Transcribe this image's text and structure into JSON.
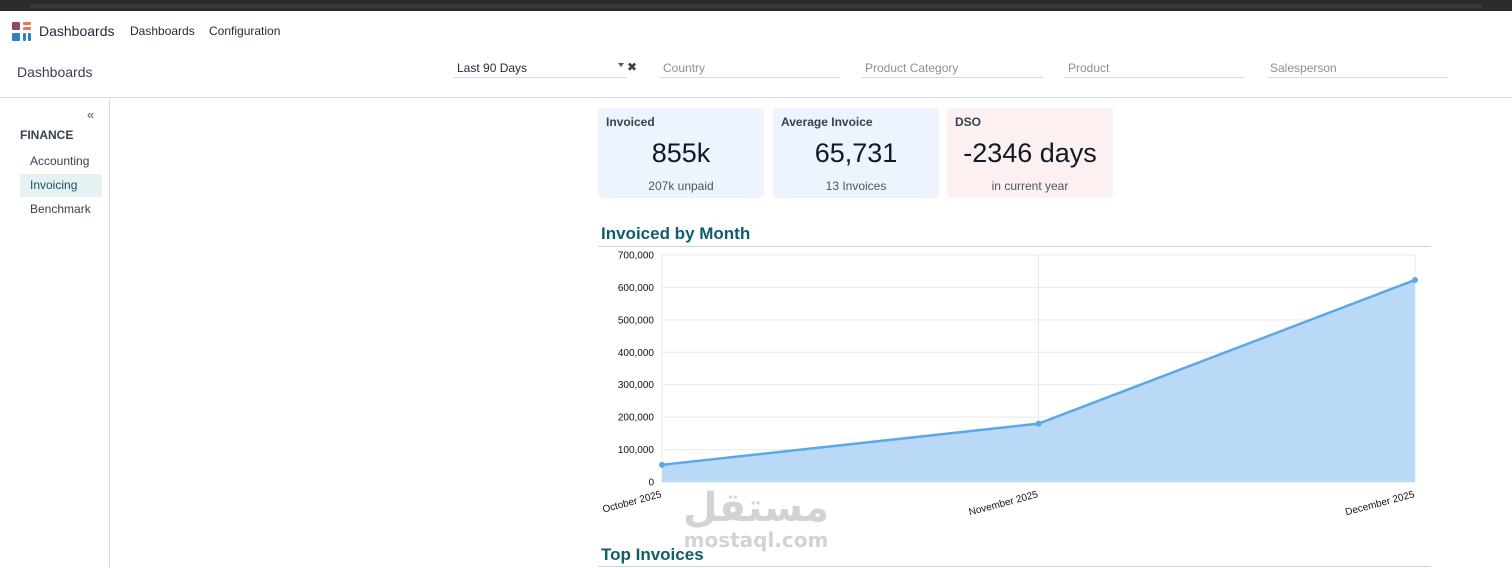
{
  "app": {
    "name": "Dashboards"
  },
  "menu": {
    "items": [
      "Dashboards",
      "Configuration"
    ]
  },
  "breadcrumb": "Dashboards",
  "filters": {
    "period": {
      "value": "Last 90 Days"
    },
    "country": {
      "placeholder": "Country"
    },
    "product_category": {
      "placeholder": "Product Category"
    },
    "product": {
      "placeholder": "Product"
    },
    "salesperson": {
      "placeholder": "Salesperson"
    }
  },
  "sidebar": {
    "collapse_glyph": "«",
    "section": "FINANCE",
    "items": [
      {
        "label": "Accounting",
        "active": false
      },
      {
        "label": "Invoicing",
        "active": true
      },
      {
        "label": "Benchmark",
        "active": false
      }
    ]
  },
  "cards": [
    {
      "title": "Invoiced",
      "value": "855k",
      "sub": "207k unpaid",
      "color": "#edf4fd"
    },
    {
      "title": "Average Invoice",
      "value": "65,731",
      "sub": "13 Invoices",
      "color": "#edf4fd"
    },
    {
      "title": "DSO",
      "value": "-2346 days",
      "sub": "in current year",
      "color": "#fdf0f0"
    }
  ],
  "sections": {
    "invoiced_by_month": "Invoiced by Month",
    "top_invoices": "Top Invoices"
  },
  "chart_data": {
    "type": "area",
    "title": "Invoiced by Month",
    "categories": [
      "October 2025",
      "November 2025",
      "December 2025"
    ],
    "series": [
      {
        "values": [
          53000,
          180000,
          623000
        ]
      }
    ],
    "ylim": [
      0,
      700000
    ],
    "yticks": [
      "0",
      "100,000",
      "200,000",
      "300,000",
      "400,000",
      "500,000",
      "600,000",
      "700,000"
    ],
    "grid": true,
    "line_color": "#5aa7ea",
    "fill_color": "#b9d9f7"
  },
  "watermark": {
    "arabic": "مستقل",
    "latin": "mostaql.com"
  },
  "icons": {
    "app_logo": "dashboard-grid-icon",
    "clear": "close-icon",
    "collapse": "double-chevron-left-icon",
    "dropdown": "caret-down-icon"
  }
}
